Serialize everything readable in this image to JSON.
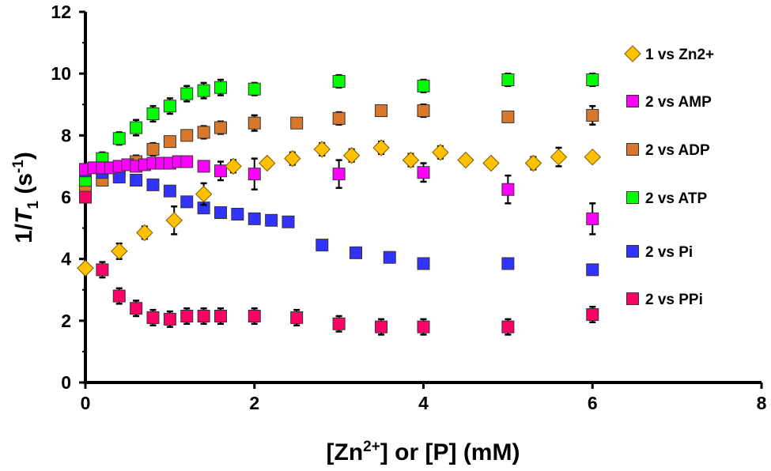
{
  "chart_data": {
    "type": "scatter",
    "xlabel": {
      "prefix": "[Zn",
      "sup": "2+",
      "suffix": "] or [P] (mM)"
    },
    "ylabel": {
      "prefix": "1/",
      "italic": "T",
      "sub": "1",
      "mid": " (s",
      "sup": "-1",
      "suffix": ")"
    },
    "xlim": [
      0,
      8
    ],
    "ylim": [
      0,
      12
    ],
    "xticks": [
      "0",
      "2",
      "4",
      "6",
      "8"
    ],
    "yticks": [
      "0",
      "2",
      "4",
      "6",
      "8",
      "10",
      "12"
    ],
    "grid": false,
    "legend_position": "right",
    "series": [
      {
        "name": "1 vs Zn2+",
        "marker": "diamond",
        "color": "#FFC000",
        "x": [
          0,
          0.4,
          0.7,
          1.05,
          1.4,
          1.75,
          2.15,
          2.45,
          2.8,
          3.15,
          3.5,
          3.85,
          4.2,
          4.5,
          4.8,
          5.3,
          5.6,
          6.0
        ],
        "y": [
          3.7,
          4.25,
          4.85,
          5.25,
          6.1,
          7.0,
          7.1,
          7.25,
          7.55,
          7.35,
          7.6,
          7.2,
          7.45,
          7.2,
          7.1,
          7.1,
          7.3,
          7.3
        ],
        "err": [
          0,
          0.25,
          0.2,
          0.45,
          0.35,
          0.2,
          0,
          0.2,
          0.2,
          0.2,
          0.2,
          0.2,
          0.2,
          0.1,
          0,
          0.2,
          0.3,
          0.1
        ]
      },
      {
        "name": "2 vs AMP",
        "marker": "square",
        "color": "#FF00FF",
        "x": [
          0,
          0.1,
          0.2,
          0.3,
          0.4,
          0.5,
          0.6,
          0.7,
          0.8,
          0.9,
          1.0,
          1.1,
          1.2,
          1.4,
          1.6,
          2.0,
          3.0,
          4.0,
          5.0,
          6.0
        ],
        "y": [
          6.9,
          6.95,
          6.95,
          6.95,
          7.0,
          7.05,
          7.0,
          7.05,
          7.1,
          7.1,
          7.1,
          7.15,
          7.15,
          7.0,
          6.85,
          6.75,
          6.75,
          6.8,
          6.25,
          5.3
        ],
        "err": [
          0,
          0,
          0,
          0,
          0,
          0,
          0,
          0,
          0,
          0,
          0,
          0,
          0,
          0,
          0.3,
          0.5,
          0.45,
          0.3,
          0.45,
          0.5
        ]
      },
      {
        "name": "2 vs ADP",
        "marker": "square",
        "color": "#D9782D",
        "x": [
          0,
          0.2,
          0.4,
          0.6,
          0.8,
          1.0,
          1.2,
          1.4,
          1.6,
          2.0,
          2.5,
          3.0,
          3.5,
          4.0,
          5.0,
          6.0
        ],
        "y": [
          6.2,
          6.55,
          6.85,
          7.15,
          7.55,
          7.8,
          8.0,
          8.1,
          8.25,
          8.4,
          8.4,
          8.55,
          8.8,
          8.8,
          8.6,
          8.65
        ],
        "err": [
          0,
          0,
          0.1,
          0.2,
          0.2,
          0,
          0,
          0.2,
          0.2,
          0.25,
          0.1,
          0.2,
          0,
          0.2,
          0.15,
          0.3
        ]
      },
      {
        "name": "2 vs ATP",
        "marker": "square",
        "color": "#00FF00",
        "x": [
          0,
          0.2,
          0.4,
          0.6,
          0.8,
          1.0,
          1.2,
          1.4,
          1.6,
          2.0,
          3.0,
          4.0,
          5.0,
          6.0
        ],
        "y": [
          6.55,
          7.25,
          7.9,
          8.25,
          8.7,
          8.95,
          9.35,
          9.45,
          9.55,
          9.5,
          9.75,
          9.6,
          9.8,
          9.8
        ],
        "err": [
          0,
          0.2,
          0.2,
          0.25,
          0.25,
          0.25,
          0.25,
          0.25,
          0.25,
          0.2,
          0.2,
          0.2,
          0.2,
          0.2
        ]
      },
      {
        "name": "2 vs Pi",
        "marker": "square",
        "color": "#3333FF",
        "x": [
          0,
          0.2,
          0.4,
          0.6,
          0.8,
          1.0,
          1.2,
          1.4,
          1.6,
          1.8,
          2.0,
          2.2,
          2.4,
          2.8,
          3.2,
          3.6,
          4.0,
          5.0,
          6.0
        ],
        "y": [
          6.85,
          6.8,
          6.65,
          6.55,
          6.4,
          6.2,
          5.85,
          5.65,
          5.5,
          5.45,
          5.3,
          5.25,
          5.2,
          4.45,
          4.2,
          4.05,
          3.85,
          3.85,
          3.65
        ],
        "err": [
          0,
          0,
          0,
          0,
          0,
          0,
          0,
          0,
          0,
          0,
          0,
          0,
          0,
          0,
          0,
          0,
          0,
          0,
          0
        ]
      },
      {
        "name": "2 vs PPi",
        "marker": "square",
        "color": "#FF0066",
        "x": [
          0,
          0.2,
          0.4,
          0.6,
          0.8,
          1.0,
          1.2,
          1.4,
          1.6,
          2.0,
          2.5,
          3.0,
          3.5,
          4.0,
          5.0,
          6.0
        ],
        "y": [
          6.0,
          3.65,
          2.8,
          2.4,
          2.1,
          2.05,
          2.15,
          2.15,
          2.15,
          2.15,
          2.1,
          1.9,
          1.8,
          1.8,
          1.8,
          2.2
        ],
        "err": [
          0,
          0.25,
          0.25,
          0.25,
          0.25,
          0.25,
          0.25,
          0.25,
          0.25,
          0.25,
          0.25,
          0.25,
          0.25,
          0.25,
          0.25,
          0.25
        ]
      }
    ]
  }
}
